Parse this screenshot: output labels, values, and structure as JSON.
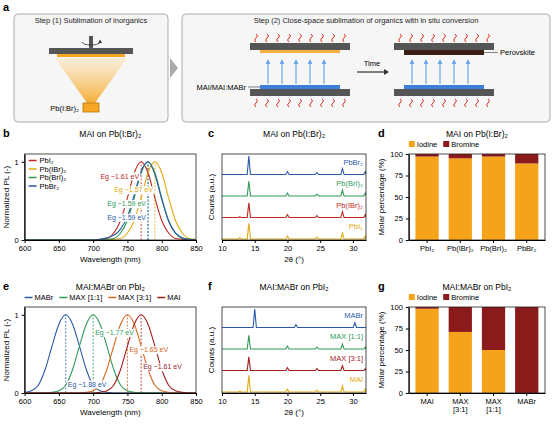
{
  "diagram": {
    "panel": "a",
    "step1_title": "Step (1) Sublimation of inorganics",
    "step2_title": "Step (2) Close-space sublimation of organics with in situ conversion",
    "source_label": "Pb(I:Br)₂",
    "organic_label": "MAI/MAI:MABr",
    "product_label": "Perovskite",
    "time_label": "Time"
  },
  "chart_data": [
    {
      "panel": "b",
      "type": "line",
      "title": "MAI on Pb(I:Br)₂",
      "x_label": "Wavelength (nm)",
      "y_label": "Normalized PL (-)",
      "x": [
        600,
        610,
        620,
        630,
        640,
        650,
        660,
        670,
        680,
        690,
        700,
        710,
        720,
        730,
        740,
        750,
        760,
        770,
        780,
        790,
        800,
        810,
        820,
        830,
        840,
        850
      ],
      "xlim": [
        600,
        850
      ],
      "xticks": [
        600,
        650,
        700,
        750,
        800,
        850
      ],
      "ylim": [
        0,
        1.1
      ],
      "yticks": [
        0,
        1
      ],
      "line_style": "smooth",
      "legend": "top-left",
      "series": [
        {
          "name": "PbI₂",
          "color": "#c0281f",
          "values": [
            0,
            0,
            0,
            0,
            0,
            0,
            0,
            0,
            0,
            0,
            0,
            0.01,
            0.02,
            0.09,
            0.25,
            0.54,
            0.86,
            1,
            0.86,
            0.54,
            0.25,
            0.09,
            0.02,
            0.01,
            0,
            0
          ],
          "annotation": "Eg ~1.61 eV",
          "annotation_x": 770
        },
        {
          "name": "Pb(IBr)₂",
          "color": "#e0aa10",
          "values": [
            0,
            0,
            0,
            0,
            0,
            0,
            0,
            0,
            0,
            0,
            0,
            0,
            0,
            0.01,
            0.02,
            0.09,
            0.25,
            0.54,
            0.86,
            1,
            0.86,
            0.54,
            0.25,
            0.09,
            0.02,
            0.01
          ],
          "annotation": "Eg ~1.57 eV",
          "annotation_x": 790
        },
        {
          "name": "Pb(BrI)₂",
          "color": "#2f9a57",
          "values": [
            0,
            0,
            0,
            0,
            0,
            0,
            0,
            0,
            0,
            0,
            0,
            0,
            0.01,
            0.02,
            0.09,
            0.25,
            0.54,
            0.86,
            1,
            0.86,
            0.54,
            0.25,
            0.09,
            0.02,
            0.01,
            0
          ],
          "annotation": "Eg ~1.59 eV",
          "annotation_x": 780
        },
        {
          "name": "PbBr₂",
          "color": "#2b59a8",
          "values": [
            0,
            0,
            0,
            0,
            0,
            0,
            0,
            0,
            0,
            0,
            0,
            0.01,
            0.03,
            0.06,
            0.14,
            0.3,
            0.58,
            0.88,
            1,
            0.84,
            0.52,
            0.24,
            0.09,
            0.03,
            0.01,
            0
          ],
          "annotation": "Eg ~1.59 eV",
          "annotation_x": 780
        }
      ]
    },
    {
      "panel": "c",
      "type": "line",
      "title": "MAI on Pb(I:Br)₂",
      "x_label": "2θ (°)",
      "y_label": "Counts (a.u.)",
      "x": [
        10,
        12.45,
        12.7,
        12.95,
        13.85,
        14.1,
        14.35,
        14.75,
        15,
        15.25,
        19.75,
        20,
        20.25,
        21.05,
        21.3,
        21.55,
        24.25,
        24.5,
        24.75,
        28.15,
        28.4,
        28.65,
        30.05,
        30.3,
        30.55,
        31.65,
        31.9,
        32
      ],
      "xlim": [
        10,
        32
      ],
      "xticks": [
        10,
        15,
        20,
        25,
        30
      ],
      "ylim": [
        0,
        4.4
      ],
      "tick_labels": "x",
      "line_style": "solid",
      "legend": "right",
      "series": [
        {
          "name": "PbI₂",
          "color": "#e0aa10",
          "values": [
            0.05,
            0.05,
            0.12,
            0.05,
            0.05,
            0.85,
            0.05,
            0.05,
            0.05,
            0.05,
            0.05,
            0.2,
            0.05,
            0.05,
            0.05,
            0.05,
            0.05,
            0.15,
            0.05,
            0.05,
            0.35,
            0.05,
            0.05,
            0.05,
            0.05,
            0.05,
            0.2,
            0.05
          ]
        },
        {
          "name": "Pb(IBr)₂",
          "color": "#c0281f",
          "values": [
            1.15,
            1.15,
            1.18,
            1.15,
            1.15,
            1.9,
            1.15,
            1.15,
            1.15,
            1.15,
            1.15,
            1.3,
            1.15,
            1.15,
            1.15,
            1.15,
            1.15,
            1.25,
            1.15,
            1.15,
            1.45,
            1.15,
            1.15,
            1.15,
            1.15,
            1.15,
            1.3,
            1.15
          ]
        },
        {
          "name": "Pb(BrI)₂",
          "color": "#2f9a57",
          "values": [
            2.25,
            2.25,
            2.25,
            2.25,
            2.25,
            3.0,
            2.25,
            2.25,
            2.25,
            2.25,
            2.25,
            2.4,
            2.25,
            2.25,
            2.25,
            2.25,
            2.25,
            2.35,
            2.25,
            2.25,
            2.55,
            2.25,
            2.25,
            2.25,
            2.25,
            2.25,
            2.4,
            2.25
          ]
        },
        {
          "name": "PbBr₂",
          "color": "#2b59a8",
          "values": [
            3.35,
            3.35,
            3.35,
            3.35,
            3.35,
            4.3,
            3.35,
            3.35,
            3.35,
            3.35,
            3.35,
            3.5,
            3.35,
            3.35,
            3.35,
            3.35,
            3.35,
            3.45,
            3.35,
            3.35,
            3.65,
            3.35,
            3.35,
            3.35,
            3.35,
            3.35,
            3.5,
            3.35
          ]
        }
      ]
    },
    {
      "panel": "d",
      "type": "bar",
      "stacked": true,
      "title": "MAI on Pb(I:Br)₂",
      "y_label": "Molar percentage (%)",
      "categories": [
        "PbI₂",
        "Pb(IBr)₂",
        "Pb(BrI)₂",
        "PbBr₂"
      ],
      "ylim": [
        0,
        100
      ],
      "yticks": [
        0,
        25,
        50,
        75,
        100
      ],
      "legend": "top",
      "series": [
        {
          "name": "Iodine",
          "color": "#f5a31b",
          "values": [
            97,
            95,
            97,
            89
          ]
        },
        {
          "name": "Bromine",
          "color": "#8b1a1a",
          "values": [
            3,
            5,
            3,
            11
          ]
        }
      ]
    },
    {
      "panel": "e",
      "type": "line",
      "title": "MAI:MABr on PbI₂",
      "x_label": "Wavelength (nm)",
      "y_label": "Normalized PL (-)",
      "x": [
        600,
        610,
        620,
        630,
        640,
        650,
        660,
        670,
        680,
        690,
        700,
        710,
        720,
        730,
        740,
        750,
        760,
        770,
        780,
        790,
        800,
        810,
        820,
        830,
        840,
        850
      ],
      "xlim": [
        600,
        850
      ],
      "xticks": [
        600,
        650,
        700,
        750,
        800,
        850
      ],
      "ylim": [
        0,
        1.1
      ],
      "yticks": [
        0,
        1
      ],
      "line_style": "smooth",
      "legend": "top",
      "series": [
        {
          "name": "MABr",
          "color": "#2b59a8",
          "values": [
            0.01,
            0.03,
            0.1,
            0.3,
            0.6,
            0.88,
            1,
            0.88,
            0.6,
            0.3,
            0.1,
            0.03,
            0.01,
            0,
            0,
            0,
            0,
            0,
            0,
            0,
            0,
            0,
            0,
            0,
            0,
            0
          ],
          "annotation": "Eg ~1.88 eV",
          "annotation_x": 660
        },
        {
          "name": "MAX [1:1]",
          "color": "#2f9a57",
          "values": [
            0,
            0,
            0,
            0,
            0.01,
            0.03,
            0.1,
            0.3,
            0.6,
            0.88,
            1,
            0.88,
            0.6,
            0.3,
            0.1,
            0.03,
            0.01,
            0,
            0,
            0,
            0,
            0,
            0,
            0,
            0,
            0
          ],
          "annotation": "Eg ~1.77 eV",
          "annotation_x": 700
        },
        {
          "name": "MAX [3:1]",
          "color": "#d9661e",
          "values": [
            0,
            0,
            0,
            0,
            0,
            0,
            0,
            0,
            0,
            0.01,
            0.03,
            0.1,
            0.3,
            0.6,
            0.88,
            1,
            0.88,
            0.6,
            0.3,
            0.1,
            0.03,
            0.01,
            0,
            0,
            0,
            0
          ],
          "annotation": "Eg ~1.65 eV",
          "annotation_x": 750
        },
        {
          "name": "MAI",
          "color": "#a31d1d",
          "values": [
            0,
            0,
            0,
            0,
            0,
            0,
            0,
            0,
            0,
            0,
            0,
            0.01,
            0.03,
            0.1,
            0.3,
            0.6,
            0.88,
            1,
            0.88,
            0.6,
            0.3,
            0.1,
            0.03,
            0.01,
            0,
            0
          ],
          "annotation": "Eg ~1.61 eV",
          "annotation_x": 770
        }
      ]
    },
    {
      "panel": "f",
      "type": "line",
      "title": "MAI:MABr on PbI₂",
      "x_label": "2θ (°)",
      "y_label": "Counts (a.u.)",
      "x": [
        10,
        12.45,
        12.7,
        12.95,
        13.85,
        14.1,
        14.35,
        14.75,
        15,
        15.25,
        19.75,
        20,
        20.25,
        21.05,
        21.3,
        21.55,
        24.25,
        24.5,
        24.75,
        28.15,
        28.4,
        28.65,
        30.05,
        30.3,
        30.55,
        31.65,
        31.9,
        32
      ],
      "xlim": [
        10,
        32
      ],
      "xticks": [
        10,
        15,
        20,
        25,
        30
      ],
      "ylim": [
        0,
        4.4
      ],
      "tick_labels": "x",
      "line_style": "solid",
      "legend": "right",
      "series": [
        {
          "name": "MAI",
          "color": "#e0aa10",
          "values": [
            0.05,
            0.05,
            0.1,
            0.05,
            0.05,
            0.9,
            0.05,
            0.05,
            0.05,
            0.05,
            0.05,
            0.2,
            0.05,
            0.05,
            0.05,
            0.05,
            0.05,
            0.15,
            0.05,
            0.05,
            0.35,
            0.05,
            0.05,
            0.05,
            0.05,
            0.05,
            0.2,
            0.05
          ]
        },
        {
          "name": "MAX [3:1]",
          "color": "#a31d1d",
          "values": [
            1.15,
            1.15,
            1.15,
            1.15,
            1.15,
            1.85,
            1.15,
            1.15,
            1.15,
            1.15,
            1.15,
            1.3,
            1.15,
            1.15,
            1.15,
            1.15,
            1.15,
            1.25,
            1.15,
            1.15,
            1.4,
            1.15,
            1.15,
            1.15,
            1.15,
            1.15,
            1.25,
            1.15
          ]
        },
        {
          "name": "MAX [1:1]",
          "color": "#2f9a57",
          "values": [
            2.25,
            2.25,
            2.25,
            2.25,
            2.25,
            2.95,
            2.25,
            2.25,
            2.25,
            2.25,
            2.25,
            2.4,
            2.25,
            2.25,
            2.25,
            2.25,
            2.25,
            2.35,
            2.25,
            2.25,
            2.5,
            2.25,
            2.25,
            2.25,
            2.25,
            2.25,
            2.35,
            2.25
          ]
        },
        {
          "name": "MABr",
          "color": "#2b59a8",
          "values": [
            3.35,
            3.35,
            3.35,
            3.35,
            3.35,
            3.35,
            3.35,
            3.35,
            4.3,
            3.35,
            3.35,
            3.35,
            3.35,
            3.35,
            3.5,
            3.35,
            3.35,
            3.35,
            3.35,
            3.35,
            3.35,
            3.35,
            3.35,
            3.6,
            3.35,
            3.35,
            3.35,
            3.35
          ]
        }
      ]
    },
    {
      "panel": "g",
      "type": "bar",
      "stacked": true,
      "title": "MAI:MABr on PbI₂",
      "y_label": "Molar percentage (%)",
      "categories": [
        "MAI",
        "MAX [3:1]",
        "MAX [1:1]",
        "MABr"
      ],
      "ylim": [
        0,
        100
      ],
      "yticks": [
        0,
        25,
        50,
        75,
        100
      ],
      "legend": "top",
      "series": [
        {
          "name": "Iodine",
          "color": "#f5a31b",
          "values": [
            98,
            71,
            50,
            0
          ]
        },
        {
          "name": "Bromine",
          "color": "#8b1a1a",
          "values": [
            2,
            29,
            50,
            100
          ]
        }
      ]
    }
  ]
}
